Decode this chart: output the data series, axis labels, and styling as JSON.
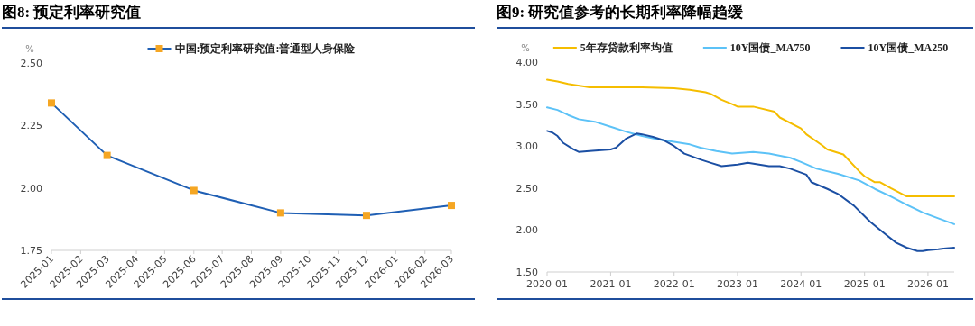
{
  "chart_data": [
    {
      "type": "line",
      "title": "图8: 预定利率研究值",
      "ylabel": "%",
      "legend": "top",
      "marker": "square",
      "grid": false,
      "xlim": [
        "2025-01",
        "2026-03"
      ],
      "xticks": [
        "2025-01",
        "2025-02",
        "2025-03",
        "2025-04",
        "2025-05",
        "2025-06",
        "2025-07",
        "2025-08",
        "2025-09",
        "2025-10",
        "2025-11",
        "2025-12",
        "2026-01",
        "2026-02",
        "2026-03"
      ],
      "ylim": [
        1.75,
        2.5
      ],
      "yticks": [
        {
          "value": 1.75,
          "label": "1.75"
        },
        {
          "value": 2.0,
          "label": "2.00"
        },
        {
          "value": 2.25,
          "label": "2.25"
        },
        {
          "value": 2.5,
          "label": "2.50"
        }
      ],
      "x": [
        "2025-01",
        "2025-03",
        "2025-06",
        "2025-09",
        "2025-12",
        "2026-03"
      ],
      "series": [
        {
          "name": "中国:预定利率研究值:普通型人身保险",
          "color": "#1f5fb4",
          "values": [
            2.34,
            2.13,
            1.99,
            1.9,
            1.89,
            1.93
          ]
        }
      ]
    },
    {
      "type": "line",
      "title": "图9: 研究值参考的长期利率降幅趋缓",
      "ylabel": "%",
      "legend": "top",
      "grid": false,
      "xlim": [
        "2020-01",
        "2026-06"
      ],
      "xticks": [
        "2020-01",
        "2021-01",
        "2022-01",
        "2023-01",
        "2024-01",
        "2025-01",
        "2026-01"
      ],
      "ylim": [
        1.5,
        4.0
      ],
      "yticks": [
        {
          "value": 1.5,
          "label": "1.50"
        },
        {
          "value": 2.0,
          "label": "2.00"
        },
        {
          "value": 2.5,
          "label": "2.50"
        },
        {
          "value": 3.0,
          "label": "3.00"
        },
        {
          "value": 3.5,
          "label": "3.50"
        },
        {
          "value": 4.0,
          "label": "4.00"
        }
      ],
      "series": [
        {
          "name": "5年存贷款利率均值",
          "color": "#f5bd00",
          "x": [
            "2020-01",
            "2020-03",
            "2020-05",
            "2020-06",
            "2020-08",
            "2020-09",
            "2021-01",
            "2021-07",
            "2022-01",
            "2022-04",
            "2022-07",
            "2022-08",
            "2022-10",
            "2022-12",
            "2023-01",
            "2023-04",
            "2023-08",
            "2023-09",
            "2024-01",
            "2024-02",
            "2024-05",
            "2024-06",
            "2024-09",
            "2024-12",
            "2025-01",
            "2025-03",
            "2025-04",
            "2025-06",
            "2025-09",
            "2026-06"
          ],
          "values": [
            3.79,
            3.77,
            3.74,
            3.73,
            3.71,
            3.7,
            3.7,
            3.7,
            3.69,
            3.67,
            3.64,
            3.62,
            3.55,
            3.5,
            3.47,
            3.47,
            3.41,
            3.34,
            3.21,
            3.14,
            3.01,
            2.96,
            2.9,
            2.7,
            2.64,
            2.57,
            2.57,
            2.5,
            2.4,
            2.4
          ]
        },
        {
          "name": "10Y国债_MA750",
          "color": "#5cc2f7",
          "x": [
            "2020-01",
            "2020-03",
            "2020-05",
            "2020-07",
            "2020-10",
            "2021-01",
            "2021-04",
            "2021-07",
            "2021-10",
            "2022-01",
            "2022-04",
            "2022-06",
            "2022-09",
            "2022-12",
            "2023-04",
            "2023-07",
            "2023-11",
            "2024-01",
            "2024-04",
            "2024-08",
            "2024-12",
            "2025-03",
            "2025-06",
            "2025-09",
            "2025-12",
            "2026-03",
            "2026-06"
          ],
          "values": [
            3.46,
            3.43,
            3.37,
            3.32,
            3.29,
            3.23,
            3.17,
            3.12,
            3.08,
            3.05,
            3.02,
            2.98,
            2.94,
            2.91,
            2.93,
            2.91,
            2.86,
            2.81,
            2.73,
            2.67,
            2.59,
            2.49,
            2.4,
            2.3,
            2.21,
            2.14,
            2.07
          ]
        },
        {
          "name": "10Y国债_MA250",
          "color": "#1b4fa3",
          "x": [
            "2020-01",
            "2020-02",
            "2020-03",
            "2020-04",
            "2020-06",
            "2020-07",
            "2020-09",
            "2021-01",
            "2021-02",
            "2021-04",
            "2021-06",
            "2021-07",
            "2021-09",
            "2021-11",
            "2022-01",
            "2022-03",
            "2022-06",
            "2022-08",
            "2022-10",
            "2023-01",
            "2023-02",
            "2023-03",
            "2023-07",
            "2023-09",
            "2023-11",
            "2024-02",
            "2024-03",
            "2024-06",
            "2024-08",
            "2024-11",
            "2025-02",
            "2025-05",
            "2025-07",
            "2025-09",
            "2025-11",
            "2025-12",
            "2026-01",
            "2026-03",
            "2026-04",
            "2026-06"
          ],
          "values": [
            3.18,
            3.16,
            3.12,
            3.04,
            2.96,
            2.93,
            2.94,
            2.96,
            2.98,
            3.09,
            3.15,
            3.14,
            3.11,
            3.07,
            3.0,
            2.91,
            2.84,
            2.8,
            2.76,
            2.78,
            2.79,
            2.8,
            2.76,
            2.76,
            2.73,
            2.66,
            2.57,
            2.49,
            2.43,
            2.29,
            2.1,
            1.95,
            1.85,
            1.79,
            1.75,
            1.75,
            1.76,
            1.77,
            1.78,
            1.79
          ]
        }
      ]
    }
  ]
}
